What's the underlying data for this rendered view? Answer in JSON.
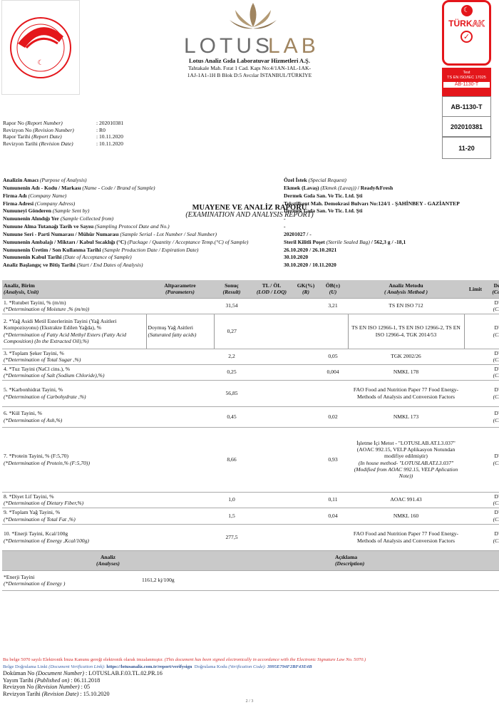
{
  "header": {
    "seal_text": "TÜRKİYE CUMHURİYETİ TARIM VE ORMAN BAKANLIĞI",
    "logo_text_gray": "LOTUS",
    "logo_text_gold": "LAB",
    "company": "Lotus Analiz Gıda Laboratuvar Hizmetleri A.Ş.",
    "address1": "Tahtakale Mah. Fırat 1 Cad. Kapı No:4/1AN-1AL-1AK-",
    "address2": "1AJ-1A1-1H B Blok D:5 Avcılar İSTANBUL/TÜRKİYE",
    "turkak": {
      "brand_a": "TÜRK",
      "brand_b": "AK",
      "test": "Test",
      "standard": "TS EN ISO/IEC 17025",
      "code": "AB-1130-T",
      "box1": "AB-1130-T",
      "box2": "202010381",
      "box3": "11-20"
    }
  },
  "meta": [
    {
      "k": "Rapor No",
      "ke": "(Report Number)",
      "v": ": 202010381"
    },
    {
      "k": "Revizyon No",
      "ke": "(Revision Number)",
      "v": ": R0"
    },
    {
      "k": "Rapor Tarihi",
      "ke": "(Report Date)",
      "v": ": 10.11.2020"
    },
    {
      "k": "Revizyon Tarihi",
      "ke": "(Revision Date)",
      "v": ": 10.11.2020"
    }
  ],
  "title": {
    "tr": "MUAYENE VE ANALİZ RAPORU",
    "en": "(EXAMINATION AND ANALYSIS REPORT)"
  },
  "info": [
    {
      "k": "Analizin Amacı",
      "ke": "(Purpose of Analysis)",
      "v": "Özel İstek",
      "ve": "(Special Request)",
      "v2": ""
    },
    {
      "k": "Numunenin Adı - Kodu / Markası",
      "ke": "(Name - Code / Brand of Sample)",
      "v": "Ekmek (Lavaş)",
      "ve": "(Ekmek (Lavaş))",
      "v2": "/ Ready&Fresh"
    },
    {
      "k": "Firma Adı",
      "ke": "(Company Name)",
      "v": "Dermek Gıda San. Ve Tic. Ltd. Şti",
      "ve": "",
      "v2": ""
    },
    {
      "k": "Firma Adresi",
      "ke": "(Company Adress)",
      "v": "Tekstilkent Mah. Demokrasi Bulvarı No:124/1  - ŞAHİNBEY - GAZİANTEP",
      "ve": "",
      "v2": ""
    },
    {
      "k": "Numuneyi Gönderen",
      "ke": "(Sample Sent by)",
      "v": "Dermek Gıda San. Ve Tic. Ltd. Şti",
      "ve": "",
      "v2": ""
    },
    {
      "k": "Numunenin Alındığı Yer",
      "ke": "(Sample Collected from)",
      "v": "-",
      "ve": "",
      "v2": ""
    },
    {
      "k": "Numune Alma Tutanağı Tarih ve Sayısı",
      "ke": "(Sampling Protocol Date and No.)",
      "v": "-",
      "ve": "",
      "v2": ""
    },
    {
      "k": "Numune Seri - Parti Numarası / Mühür Numarası",
      "ke": "(Sample Serial - Lot Number / Seal Number)",
      "v": "20201027 / -",
      "ve": "",
      "v2": ""
    },
    {
      "k": "Numunenin Ambalajı / Miktarı / Kabul Sıcaklığı (°C)",
      "ke": "(Package / Quantity / Acceptance Temp.(°C) of Sample)",
      "v": "Steril Kilitli Poşet",
      "ve": "(Sterile Sealed Bag)",
      "v2": "/ 562,3 g / -18,1"
    },
    {
      "k": "Numunenin Üretim / Son Kullanma Tarihi",
      "ke": "(Sample Production Date / Expiration Date)",
      "v": "26.10.2020 / 26.10.2021",
      "ve": "",
      "v2": ""
    },
    {
      "k": "Numunenin Kabul Tarihi",
      "ke": "(Date of Acceptance of Sample)",
      "v": "30.10.2020",
      "ve": "",
      "v2": ""
    },
    {
      "k": "Analiz Başlangıç ve Bitiş Tarihi",
      "ke": "(Start / End Dates of Analysis)",
      "v": "30.10.2020 / 10.11.2020",
      "ve": "",
      "v2": ""
    }
  ],
  "table": {
    "headers": [
      {
        "tr": "Analiz, Birim",
        "en": "(Analysis, Unit)"
      },
      {
        "tr": "Altparametre",
        "en": "(Parameters)"
      },
      {
        "tr": "Sonuç",
        "en": "(Result)"
      },
      {
        "tr": "TL / ÖL",
        "en": "(LOD / LOQ)"
      },
      {
        "tr": "GK(%)",
        "en": "(R)"
      },
      {
        "tr": "ÖB(±)",
        "en": "(U)"
      },
      {
        "tr": "Analiz Metodu",
        "en": "( Analysis Method )"
      },
      {
        "tr": "Limit",
        "en": ""
      },
      {
        "tr": "Değ",
        "en": "(Com"
      }
    ],
    "rows": [
      {
        "tr": "1. *Rutubet Tayini, % (m/m)",
        "en": "(*Determination of Moisture ,% (m/m))",
        "sub": "",
        "sub_en": "",
        "result": "31,54",
        "lod": "",
        "r": "",
        "u": "3,21",
        "method": "TS EN ISO 712",
        "method_en": "",
        "limit": "",
        "comp": "DY",
        "comp_en": "(CE)"
      },
      {
        "tr": "2. *Yağ Asidi Metil Esterlerinin Tayini (Yağ Asitleri Kompozisyonu) (Ekstrakte Edilen Yağda), %",
        "en": " (*Determination of Fatty Acid Methyl Esters (Fatty Acid Composition) (In the Extracted Oil),%)",
        "sub": "Doymuş Yağ Asitleri",
        "sub_en": "(Saturated fatty acids)",
        "result": "0,27",
        "lod": "",
        "r": "",
        "u": "",
        "method": "TS EN ISO 12966-1, TS EN ISO 12966-2, TS EN ISO 12966-4, TGK 2014/53",
        "method_en": "",
        "limit": "",
        "comp": "DY",
        "comp_en": "(CE)"
      },
      {
        "tr": "3. *Toplam Şeker Tayini, %",
        "en": "(*Determination of Total Sugar ,%)",
        "sub": "",
        "sub_en": "",
        "result": "2,2",
        "lod": "",
        "r": "",
        "u": "0,05",
        "method": "TGK 2002/26",
        "method_en": "",
        "limit": "",
        "comp": "DY",
        "comp_en": "(CE)"
      },
      {
        "tr": "4. *Tuz Tayini (NaCl cins.), %",
        "en": "(*Determination of Salt (Sodium Chloride),%)",
        "sub": "",
        "sub_en": "",
        "result": "0,25",
        "lod": "",
        "r": "",
        "u": "0,004",
        "method": "NMKL 178",
        "method_en": "",
        "limit": "",
        "comp": "DY",
        "comp_en": "(CE)"
      },
      {
        "tr": "5. *Karbonhidrat Tayini, %",
        "en": "(*Determination of Carbohydrate ,%)",
        "sub": "",
        "sub_en": "",
        "result": "56,85",
        "lod": "",
        "r": "",
        "u": "",
        "method": "FAO Food and Nutrition Paper 77 Food Energy-Methods of Analysis and Conversion Factors",
        "method_en": "",
        "limit": "",
        "comp": "DY",
        "comp_en": "(CE)"
      },
      {
        "tr": "6. *Kül Tayini, %",
        "en": "(*Determination of Ash,%)",
        "sub": "",
        "sub_en": "",
        "result": "0,45",
        "lod": "",
        "r": "",
        "u": "0,02",
        "method": "NMKL 173",
        "method_en": "",
        "limit": "",
        "comp": "DY",
        "comp_en": "(CE)"
      },
      {
        "tr": "7. *Protein Tayini, % (F:5,70)",
        "en": "(*Determination of Protein,% (F:5,70))",
        "sub": "",
        "sub_en": "",
        "result": "8,66",
        "lod": "",
        "r": "",
        "u": "0,93",
        "method": "İşletme İçi Metot - \"LOTUSLAB.AT.L3.037\" (AOAC 992.15, VELP Aplikasyon Notundan modifiye edilmiştir)",
        "method_en": "(In house method- \"LOTUSLAB.AT.L3.037\" (Modified from AOAC 992.15, VELP Aplication Note))",
        "limit": "",
        "comp": "DY",
        "comp_en": "(CE)"
      },
      {
        "tr": "8. *Diyet Lif Tayini, %",
        "en": "(*Determination of Dietary Fiber,%)",
        "sub": "",
        "sub_en": "",
        "result": "1,0",
        "lod": "",
        "r": "",
        "u": "0,11",
        "method": "AOAC 991.43",
        "method_en": "",
        "limit": "",
        "comp": "DY",
        "comp_en": "(CE)"
      },
      {
        "tr": "9. *Toplam Yağ Tayini, %",
        "en": "(*Determination of Total Fat ,%)",
        "sub": "",
        "sub_en": "",
        "result": "1,5",
        "lod": "",
        "r": "",
        "u": "0,04",
        "method": "NMKL 160",
        "method_en": "",
        "limit": "",
        "comp": "DY",
        "comp_en": "(CE)"
      },
      {
        "tr": "10. *Enerji Tayini, Kcal/100g",
        "en": "(*Determination of Energy   ,Kcal/100g)",
        "sub": "",
        "sub_en": "",
        "result": "277,5",
        "lod": "",
        "r": "",
        "u": "",
        "method": "FAO Food and Nutrition Paper 77 Food Energy-Methods of Analysis and Conversion Factors",
        "method_en": "",
        "limit": "",
        "comp": "DY",
        "comp_en": "(CE)"
      }
    ],
    "desc_headers": [
      {
        "tr": "Analiz",
        "en": "(Analyses)"
      },
      {
        "tr": "Açıklama",
        "en": "(Description)"
      }
    ],
    "desc_rows": [
      {
        "tr": "*Enerji Tayini",
        "en": " (*Determination of Energy   )",
        "desc": "1161,2 kj/100g"
      }
    ]
  },
  "footer": {
    "sign_tr": "Bu belge 5070 sayılı Elektronik İmza Kanunu gereği elektronik olarak imzalanmıştır.",
    "sign_en": "(This document has been signed electronically in accordance with the Electronic Signature Law No. 5070.)",
    "link_label": "Belge Doğrulama Linki",
    "link_label_en": "(Document Verification Link):",
    "link": "https://lotusanaliz.com.tr/report/verifysign",
    "code_label": "Doğrulama Kodu",
    "code_label_en": "(Verification Code):",
    "code": "3995E794F2BF43E4B",
    "lines": [
      {
        "k": "Doküman No",
        "ke": "(Document Number)",
        "v": ": LOTUSLAB.F.03.TL.02.PR.16"
      },
      {
        "k": "Yayım Tarihi",
        "ke": "(Published on)",
        "v": ": 06.11.2018"
      },
      {
        "k": "Revizyon No",
        "ke": "(Revision Number)",
        "v": ": 05"
      },
      {
        "k": "Revizyon Tarihi",
        "ke": "(Revision Date)",
        "v": ": 15.10.2020"
      }
    ],
    "page": "2 / 3"
  },
  "colors": {
    "turkak_red": "#e4161b",
    "seal_red": "#e4161b",
    "logo_gold": "#a08560",
    "logo_gray": "#6d6d6d",
    "header_gray": "#c9c9c9"
  }
}
